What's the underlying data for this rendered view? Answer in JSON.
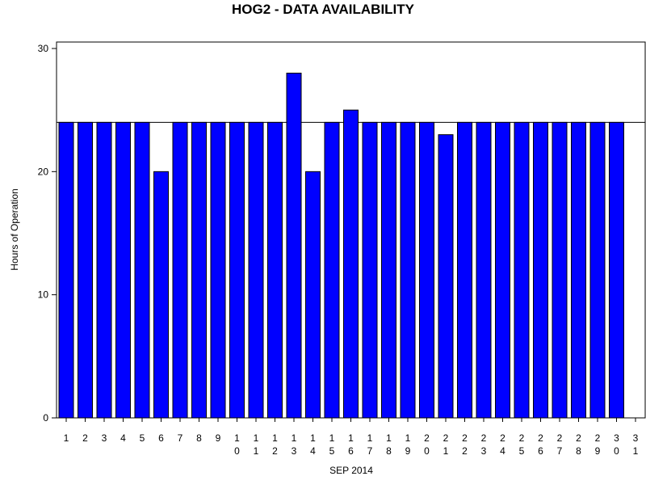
{
  "chart_data": {
    "type": "bar",
    "title": "HOG2 - DATA AVAILABILITY",
    "xlabel": "SEP 2014",
    "ylabel": "Hours of Operation",
    "ylim": [
      0,
      30
    ],
    "yticks": [
      0,
      10,
      20,
      30
    ],
    "categories": [
      "1",
      "2",
      "3",
      "4",
      "5",
      "6",
      "7",
      "8",
      "9",
      "10",
      "11",
      "12",
      "13",
      "14",
      "15",
      "16",
      "17",
      "18",
      "19",
      "20",
      "21",
      "22",
      "23",
      "24",
      "25",
      "26",
      "27",
      "28",
      "29",
      "30",
      "31"
    ],
    "values": [
      24,
      24,
      24,
      24,
      24,
      20,
      24,
      24,
      24,
      24,
      24,
      24,
      28,
      20,
      24,
      25,
      24,
      24,
      24,
      24,
      23,
      24,
      24,
      24,
      24,
      24,
      24,
      24,
      24,
      24,
      null
    ],
    "reference_line": 24,
    "grid": false,
    "legend": "none",
    "colors": {
      "bar_fill": "#0000ff",
      "bar_stroke": "#000000",
      "reference_line": "#000000",
      "background": "#ffffff"
    }
  }
}
